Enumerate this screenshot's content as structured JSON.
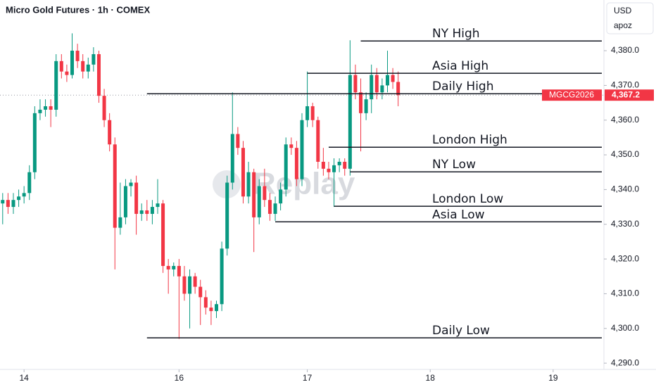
{
  "chart_data": {
    "type": "candlestick",
    "title": "Micro Gold Futures · 1h · COMEX",
    "currency": "USD",
    "unit_label": "apoz",
    "watermark": "Replay",
    "x": [
      0,
      1,
      2,
      3,
      4,
      5,
      6,
      7,
      8,
      9,
      10,
      11,
      12,
      13,
      14,
      15,
      16,
      17,
      18,
      19,
      20,
      21,
      22,
      23,
      24,
      25,
      26,
      27,
      28,
      29,
      30,
      31,
      32,
      33,
      34,
      35,
      36,
      37,
      38,
      39,
      40,
      41,
      42,
      43,
      44,
      45,
      46,
      47,
      48,
      49,
      50,
      51,
      52,
      53,
      54,
      55,
      56,
      57,
      58,
      59,
      60,
      61,
      62,
      63,
      64,
      65,
      66,
      67,
      68,
      69,
      70,
      71,
      72,
      73,
      74
    ],
    "open": [
      4336,
      4337,
      4335,
      4337,
      4338,
      4339,
      4345,
      4362,
      4363,
      4364,
      4363,
      4377,
      4374,
      4373,
      4380,
      4377,
      4374,
      4376,
      4379,
      4367,
      4360,
      4353,
      4329,
      4332,
      4341,
      4342,
      4333,
      4334,
      4333,
      4335,
      4336,
      4318,
      4317,
      4318,
      4315,
      4310,
      4315,
      4312,
      4309,
      4306,
      4305,
      4307,
      4323,
      4342,
      4356,
      4352,
      4338,
      4345,
      4332,
      4341,
      4337,
      4333,
      4336,
      4340,
      4353,
      4352,
      4343,
      4360,
      4364,
      4360,
      4348,
      4346,
      4345,
      4347,
      4348,
      4346,
      4373,
      4368,
      4362,
      4366,
      4373,
      4368,
      4370,
      4373,
      4371
    ],
    "high": [
      4339,
      4339,
      4339,
      4340,
      4341,
      4347,
      4364,
      4366,
      4366,
      4366,
      4379,
      4379,
      4376,
      4385,
      4382,
      4379,
      4378,
      4381,
      4380,
      4369,
      4362,
      4355,
      4342,
      4343,
      4343,
      4344,
      4336,
      4337,
      4337,
      4343,
      4337,
      4320,
      4319,
      4320,
      4318,
      4317,
      4316,
      4314,
      4311,
      4308,
      4308,
      4325,
      4344,
      4368,
      4358,
      4354,
      4348,
      4346,
      4343,
      4346,
      4339,
      4338,
      4342,
      4355,
      4355,
      4354,
      4362,
      4374,
      4365,
      4361,
      4352,
      4348,
      4349,
      4349,
      4349,
      4383,
      4376,
      4372,
      4368,
      4376,
      4375,
      4372,
      4380,
      4375,
      4374
    ],
    "low": [
      4330,
      4333,
      4333,
      4335,
      4336,
      4337,
      4343,
      4360,
      4361,
      4358,
      4361,
      4372,
      4371,
      4372,
      4375,
      4372,
      4372,
      4374,
      4365,
      4358,
      4351,
      4317,
      4327,
      4330,
      4338,
      4327,
      4331,
      4331,
      4330,
      4333,
      4316,
      4310,
      4315,
      4297,
      4308,
      4300,
      4310,
      4301,
      4304,
      4301,
      4303,
      4305,
      4321,
      4340,
      4350,
      4336,
      4336,
      4322,
      4330,
      4335,
      4331,
      4331,
      4334,
      4338,
      4350,
      4341,
      4341,
      4358,
      4358,
      4346,
      4344,
      4343,
      4335,
      4345,
      4344,
      4344,
      4366,
      4351,
      4360,
      4362,
      4366,
      4366,
      4368,
      4369,
      4364
    ],
    "close": [
      4337,
      4335,
      4337,
      4338,
      4339,
      4345,
      4362,
      4363,
      4364,
      4363,
      4377,
      4374,
      4373,
      4380,
      4377,
      4374,
      4376,
      4379,
      4367,
      4360,
      4353,
      4329,
      4332,
      4341,
      4342,
      4333,
      4334,
      4333,
      4335,
      4336,
      4318,
      4317,
      4318,
      4315,
      4310,
      4315,
      4312,
      4309,
      4306,
      4305,
      4307,
      4323,
      4342,
      4356,
      4352,
      4338,
      4345,
      4332,
      4341,
      4337,
      4333,
      4336,
      4340,
      4353,
      4352,
      4343,
      4360,
      4364,
      4360,
      4348,
      4346,
      4345,
      4347,
      4348,
      4346,
      4373,
      4368,
      4362,
      4366,
      4373,
      4368,
      4370,
      4373,
      4371,
      4367.2
    ],
    "up_color": "#089981",
    "down_color": "#f23645",
    "xlim": [
      -0.5,
      112.5
    ],
    "xticks": [
      {
        "value": 4,
        "label": "14"
      },
      {
        "value": 33,
        "label": "16"
      },
      {
        "value": 57,
        "label": "17"
      },
      {
        "value": 80,
        "label": "18"
      },
      {
        "value": 103,
        "label": "19"
      }
    ],
    "ylim": [
      4288.2,
      4394.6
    ],
    "yticks": [
      {
        "value": 4290,
        "label": "4,290.0"
      },
      {
        "value": 4300,
        "label": "4,300.0"
      },
      {
        "value": 4310,
        "label": "4,310.0"
      },
      {
        "value": 4320,
        "label": "4,320.0"
      },
      {
        "value": 4330,
        "label": "4,330.0"
      },
      {
        "value": 4340,
        "label": "4,340.0"
      },
      {
        "value": 4350,
        "label": "4,350.0"
      },
      {
        "value": 4360,
        "label": "4,360.0"
      },
      {
        "value": 4370,
        "label": "4,370.0"
      },
      {
        "value": 4380,
        "label": "4,380.0"
      }
    ],
    "levels": [
      {
        "name": "NY High",
        "value": 4382.8,
        "from": 67
      },
      {
        "name": "Asia High",
        "value": 4373.5,
        "from": 57
      },
      {
        "name": "Daily High",
        "value": 4367.6,
        "from": 27
      },
      {
        "name": "London High",
        "value": 4352.2,
        "from": 61
      },
      {
        "name": "NY Low",
        "value": 4345.1,
        "from": 65
      },
      {
        "name": "London Low",
        "value": 4335.2,
        "from": 62
      },
      {
        "name": "Asia Low",
        "value": 4330.7,
        "from": 51
      },
      {
        "name": "Daily Low",
        "value": 4297.3,
        "from": 27
      }
    ],
    "last_price": {
      "value": 4367.2,
      "label": "4,367.2"
    },
    "symbol_label": "MGCG2026"
  }
}
